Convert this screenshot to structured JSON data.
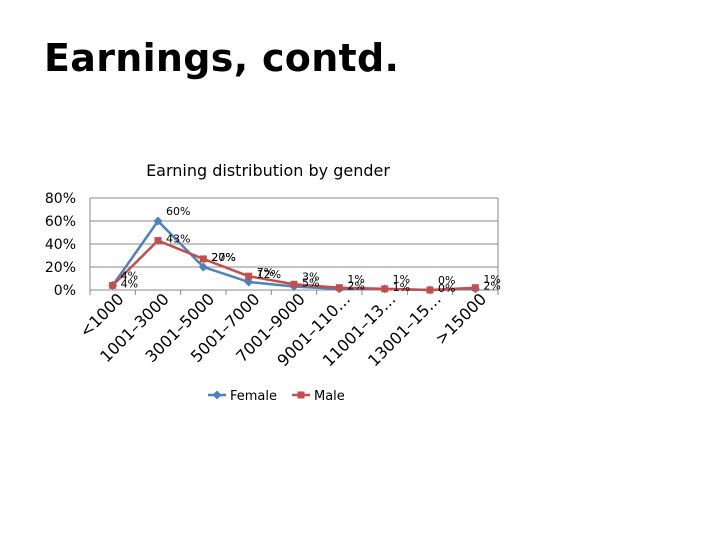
{
  "slide": {
    "title": "Earnings, contd."
  },
  "chart_data": {
    "type": "line",
    "title": "Earning distribution by gender",
    "categories": [
      "<1000",
      "1001–3000",
      "3001–5000",
      "5001–7000",
      "7001–9000",
      "9001–110…",
      "11001–13…",
      "13001–15…",
      ">15000"
    ],
    "series": [
      {
        "name": "Female",
        "values": [
          4,
          60,
          20,
          7,
          3,
          1,
          1,
          0,
          1
        ],
        "labels": [
          "4%",
          "60%",
          "20%",
          "7%",
          "3%",
          "1%",
          "1%",
          "0%",
          "1%"
        ],
        "color": "#4F81BD",
        "marker": "diamond"
      },
      {
        "name": "Male",
        "values": [
          4,
          43,
          27,
          12,
          5,
          2,
          1,
          0,
          2
        ],
        "labels": [
          "4%",
          "43%",
          "27%",
          "12%",
          "5%",
          "2%",
          "1%",
          "0%",
          "2%"
        ],
        "color": "#C0504D",
        "marker": "square"
      }
    ],
    "yticks": [
      "0%",
      "20%",
      "40%",
      "60%",
      "80%"
    ],
    "ylim": [
      0,
      80
    ],
    "grid": true,
    "legend": "bottom"
  }
}
